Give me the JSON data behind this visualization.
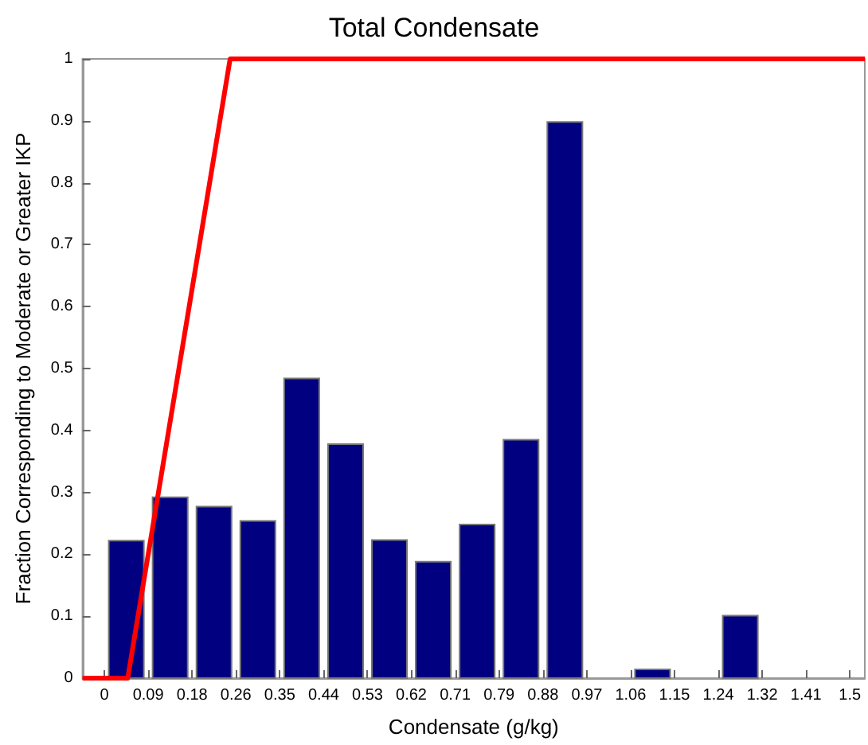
{
  "chart_data": {
    "type": "histogram",
    "title": "Total Condensate",
    "xlabel": "Condensate (g/kg)",
    "ylabel": "Fraction Corresponding to Moderate or Greater IKP",
    "bins": [
      0,
      0.0882,
      0.1765,
      0.2647,
      0.3529,
      0.4412,
      0.5294,
      0.6176,
      0.7059,
      0.7941,
      0.8824,
      0.9706,
      1.0588,
      1.1471,
      1.2353,
      1.3235,
      1.4118,
      1.5
    ],
    "values": [
      0.222,
      0.292,
      0.277,
      0.254,
      0.484,
      0.378,
      0.223,
      0.188,
      0.248,
      0.385,
      0.898,
      0,
      0.014,
      0,
      0.101,
      0,
      0
    ],
    "color": "#000080",
    "series": [
      {
        "type": "line",
        "color": "#ff0000",
        "x": [
          -0.044,
          0.047,
          0.253,
          1.53
        ],
        "values": [
          0,
          0,
          1,
          1
        ]
      }
    ],
    "xlim": [
      -0.044,
      1.53
    ],
    "ylim": [
      0,
      1
    ],
    "xticks": [
      0,
      {
        "value": 0.0882,
        "label": "0.09"
      },
      {
        "value": 0.1765,
        "label": "0.18"
      },
      {
        "value": 0.2647,
        "label": "0.26"
      },
      {
        "value": 0.3529,
        "label": "0.35"
      },
      {
        "value": 0.4412,
        "label": "0.44"
      },
      {
        "value": 0.5294,
        "label": "0.53"
      },
      {
        "value": 0.6176,
        "label": "0.62"
      },
      {
        "value": 0.7059,
        "label": "0.71"
      },
      {
        "value": 0.7941,
        "label": "0.79"
      },
      {
        "value": 0.8824,
        "label": "0.88"
      },
      {
        "value": 0.9706,
        "label": "0.97"
      },
      {
        "value": 1.0588,
        "label": "1.06"
      },
      {
        "value": 1.1471,
        "label": "1.15"
      },
      {
        "value": 1.2353,
        "label": "1.24"
      },
      {
        "value": 1.3235,
        "label": "1.32"
      },
      {
        "value": 1.4118,
        "label": "1.41"
      },
      1.5
    ],
    "yticks": [
      0,
      0.1,
      0.2,
      0.3,
      0.4,
      0.5,
      0.6,
      0.7,
      0.8,
      0.9,
      1
    ],
    "grid": false,
    "marker": "none",
    "line_style": "solid"
  }
}
